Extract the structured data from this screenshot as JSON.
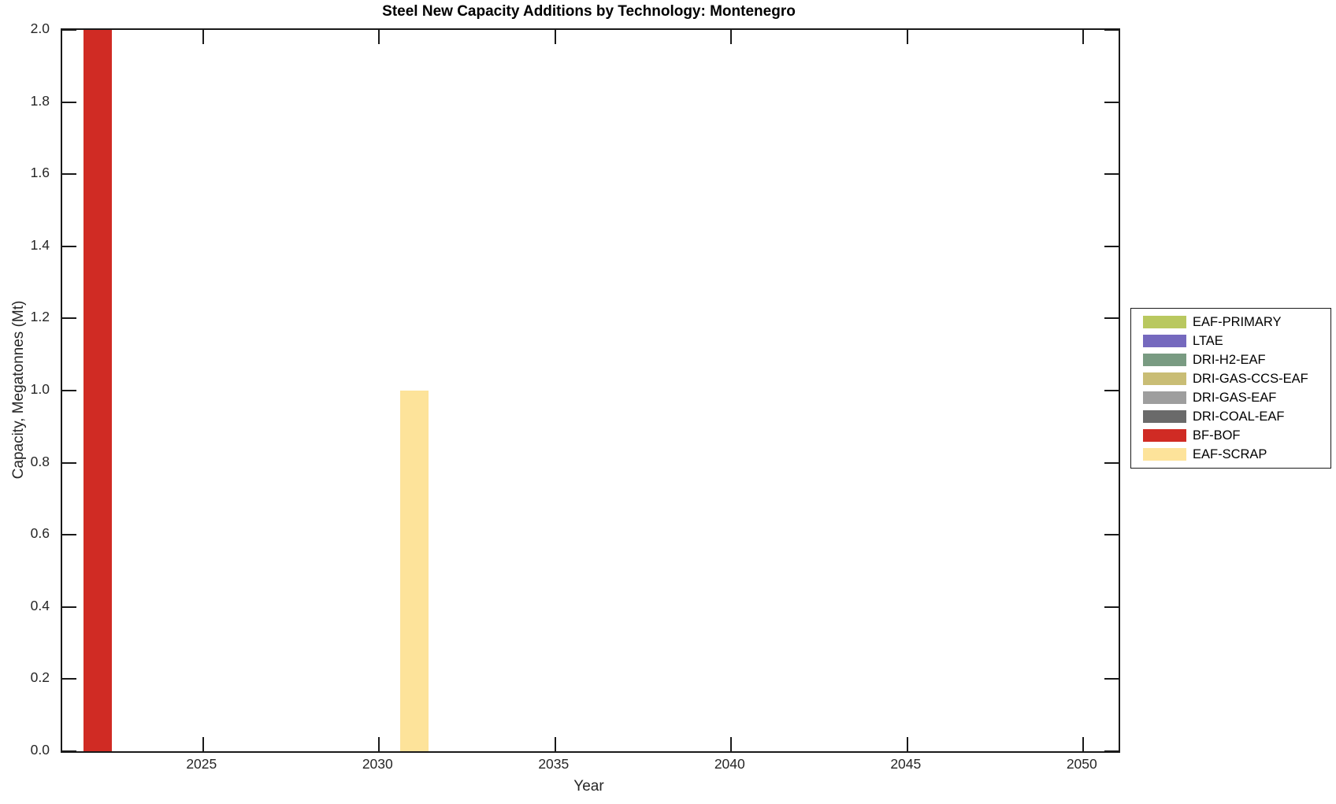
{
  "chart_data": {
    "type": "bar",
    "title": "Steel New Capacity Additions by Technology: Montenegro",
    "xlabel": "Year",
    "ylabel": "Capacity, Megatonnes (Mt)",
    "xlim": [
      2021,
      2051
    ],
    "ylim": [
      0,
      2
    ],
    "x_ticks": [
      2025,
      2030,
      2035,
      2040,
      2045,
      2050
    ],
    "y_ticks": [
      0,
      0.2,
      0.4,
      0.6,
      0.8,
      1,
      1.2,
      1.4,
      1.6,
      1.8,
      2
    ],
    "grid": false,
    "legend_position": "right-outside",
    "bar_width_years": 0.8,
    "series": [
      {
        "name": "EAF-PRIMARY",
        "color": "#b9c85f",
        "points": []
      },
      {
        "name": "LTAE",
        "color": "#7569be",
        "points": []
      },
      {
        "name": "DRI-H2-EAF",
        "color": "#799b82",
        "points": []
      },
      {
        "name": "DRI-GAS-CCS-EAF",
        "color": "#c9bd75",
        "points": []
      },
      {
        "name": "DRI-GAS-EAF",
        "color": "#9e9e9e",
        "points": []
      },
      {
        "name": "DRI-COAL-EAF",
        "color": "#6a6a6a",
        "points": []
      },
      {
        "name": "BF-BOF",
        "color": "#d02b24",
        "points": [
          {
            "x": 2022,
            "y": 2.0
          }
        ]
      },
      {
        "name": "EAF-SCRAP",
        "color": "#fde39a",
        "points": [
          {
            "x": 2031,
            "y": 1.0
          }
        ]
      }
    ],
    "axis_color": "#1a1a1a",
    "label_color": "#262626"
  }
}
